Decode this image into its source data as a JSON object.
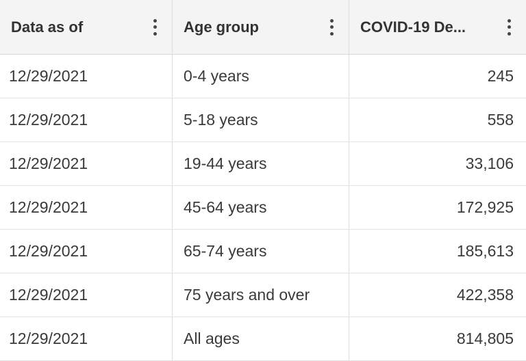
{
  "table": {
    "columns": [
      "Data as of",
      "Age group",
      "COVID-19 De..."
    ],
    "rows": [
      [
        "12/29/2021",
        "0-4 years",
        "245"
      ],
      [
        "12/29/2021",
        "5-18 years",
        "558"
      ],
      [
        "12/29/2021",
        "19-44 years",
        "33,106"
      ],
      [
        "12/29/2021",
        "45-64 years",
        "172,925"
      ],
      [
        "12/29/2021",
        "65-74 years",
        "185,613"
      ],
      [
        "12/29/2021",
        "75 years and over",
        "422,358"
      ],
      [
        "12/29/2021",
        "All ages",
        "814,805"
      ]
    ]
  }
}
